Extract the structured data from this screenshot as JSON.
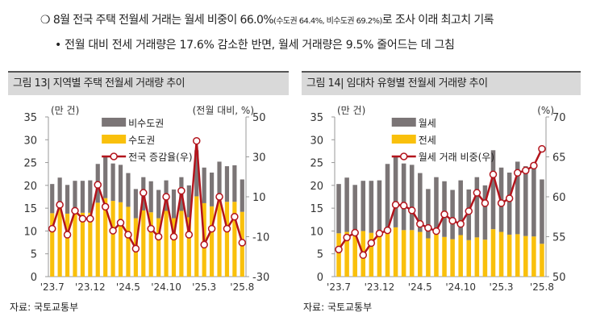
{
  "header": {
    "bullet1_prefix": "8월 전국 주택 전월세 거래는 월세 비중이 66.0%",
    "bullet1_paren": "(수도권 64.4%, 비수도권 69.2%)",
    "bullet1_suffix": "로 조사 이래 최고치 기록",
    "bullet2": "• 전월 대비 전세 거래량은 17.6% 감소한 반면, 월세 거래량은 9.5% 줄어드는 데 그침"
  },
  "colors": {
    "gray_bar": "#7b7576",
    "yellow_bar": "#f9c00c",
    "line": "#b3141c"
  },
  "chart_data": [
    {
      "type": "bar",
      "title": "그림 13| 지역별 주택 전월세 거래량 추이",
      "stacked": true,
      "ylabel": "(만 건)",
      "y2label": "(전월 대비, %)",
      "ylim": [
        0,
        35
      ],
      "yticks": [
        "0",
        "5",
        "10",
        "15",
        "20",
        "25",
        "30",
        "35"
      ],
      "y2lim": [
        -30,
        50
      ],
      "y2ticks": [
        "-30",
        "-10",
        "10",
        "30",
        "50"
      ],
      "x_tick_labels": [
        "'23.7",
        "'23.12",
        "'24.5",
        "'24.10",
        "'25.3",
        "'25.8"
      ],
      "x_tick_index": [
        0,
        5,
        10,
        15,
        20,
        25
      ],
      "categories": [
        "23.7",
        "23.8",
        "23.9",
        "23.10",
        "23.11",
        "23.12",
        "24.1",
        "24.2",
        "24.3",
        "24.4",
        "24.5",
        "24.6",
        "24.7",
        "24.8",
        "24.9",
        "24.10",
        "24.11",
        "24.12",
        "25.1",
        "25.2",
        "25.3",
        "25.4",
        "25.5",
        "25.6",
        "25.7",
        "25.8"
      ],
      "series": [
        {
          "name": "수도권",
          "kind": "bar",
          "color": "#f9c00c",
          "values": [
            13.9,
            15.9,
            13.8,
            15.0,
            14.0,
            14.0,
            16.2,
            17.2,
            16.6,
            16.3,
            15.3,
            12.8,
            14.5,
            14.1,
            12.8,
            14.4,
            12.8,
            14.4,
            13.0,
            17.6,
            16.1,
            15.4,
            17.5,
            16.4,
            16.4,
            14.2
          ]
        },
        {
          "name": "비수도권",
          "kind": "bar",
          "color": "#7b7576",
          "values": [
            6.4,
            5.8,
            6.3,
            6.0,
            7.0,
            7.1,
            8.5,
            9.0,
            8.2,
            8.2,
            7.4,
            6.4,
            7.3,
            6.8,
            6.2,
            6.7,
            6.3,
            7.4,
            7.0,
            10.1,
            7.8,
            7.4,
            7.7,
            7.8,
            8.0,
            7.1
          ]
        },
        {
          "name": "전국 증감율(우)",
          "kind": "line",
          "axis": "right",
          "color": "#b3141c",
          "values": [
            -6,
            6,
            -9,
            3,
            -1,
            -1,
            16,
            5,
            -7,
            -3,
            -9,
            -16,
            12,
            -6,
            -10,
            10,
            -10,
            13,
            -9,
            38,
            -14,
            -6,
            10,
            -6,
            0,
            -13
          ]
        }
      ],
      "legend_position": "top-center",
      "grid": false
    },
    {
      "type": "bar",
      "title": "그림 14| 임대차 유형별 전월세 거래량 추이",
      "stacked": true,
      "ylabel": "(만 건)",
      "y2label": "(%)",
      "ylim": [
        0,
        35
      ],
      "yticks": [
        "0",
        "5",
        "10",
        "15",
        "20",
        "25",
        "30",
        "35"
      ],
      "y2lim": [
        50,
        70
      ],
      "y2ticks": [
        "50",
        "55",
        "60",
        "65",
        "70"
      ],
      "x_tick_labels": [
        "'23.7",
        "'23.12",
        "'24.5",
        "'24.10",
        "'25.3",
        "'25.8"
      ],
      "x_tick_index": [
        0,
        5,
        10,
        15,
        20,
        25
      ],
      "categories": [
        "23.7",
        "23.8",
        "23.9",
        "23.10",
        "23.11",
        "23.12",
        "24.1",
        "24.2",
        "24.3",
        "24.4",
        "24.5",
        "24.6",
        "24.7",
        "24.8",
        "24.9",
        "24.10",
        "24.11",
        "24.12",
        "25.1",
        "25.2",
        "25.3",
        "25.4",
        "25.5",
        "25.6",
        "25.7",
        "25.8"
      ],
      "series": [
        {
          "name": "전세",
          "kind": "bar",
          "color": "#f9c00c",
          "values": [
            9.5,
            9.8,
            9.5,
            10.0,
            9.6,
            9.6,
            10.2,
            10.8,
            10.2,
            10.2,
            9.8,
            8.4,
            9.6,
            8.7,
            8.2,
            9.1,
            8.0,
            8.6,
            8.1,
            10.4,
            9.8,
            9.2,
            9.3,
            8.9,
            8.8,
            7.2
          ]
        },
        {
          "name": "월세",
          "kind": "bar",
          "color": "#7b7576",
          "values": [
            10.8,
            11.9,
            10.6,
            11.0,
            11.4,
            11.5,
            14.5,
            15.4,
            14.6,
            14.3,
            12.9,
            10.8,
            12.2,
            12.2,
            10.8,
            12.0,
            11.1,
            13.2,
            11.9,
            17.3,
            14.1,
            13.6,
            15.9,
            15.3,
            15.6,
            14.1
          ]
        },
        {
          "name": "월세 거래 비중(우)",
          "kind": "line",
          "axis": "right",
          "color": "#b3141c",
          "values": [
            53.4,
            54.9,
            55.5,
            52.7,
            54.2,
            55.4,
            55.8,
            59.0,
            58.9,
            58.3,
            56.6,
            56.1,
            55.7,
            57.8,
            57.0,
            56.6,
            58.2,
            60.5,
            59.2,
            62.8,
            59.2,
            59.8,
            63.0,
            63.3,
            63.9,
            66.0
          ]
        }
      ],
      "legend_position": "top-center",
      "grid": false
    }
  ],
  "source": [
    "자료: 국토교통부",
    "자료: 국토교통부"
  ]
}
